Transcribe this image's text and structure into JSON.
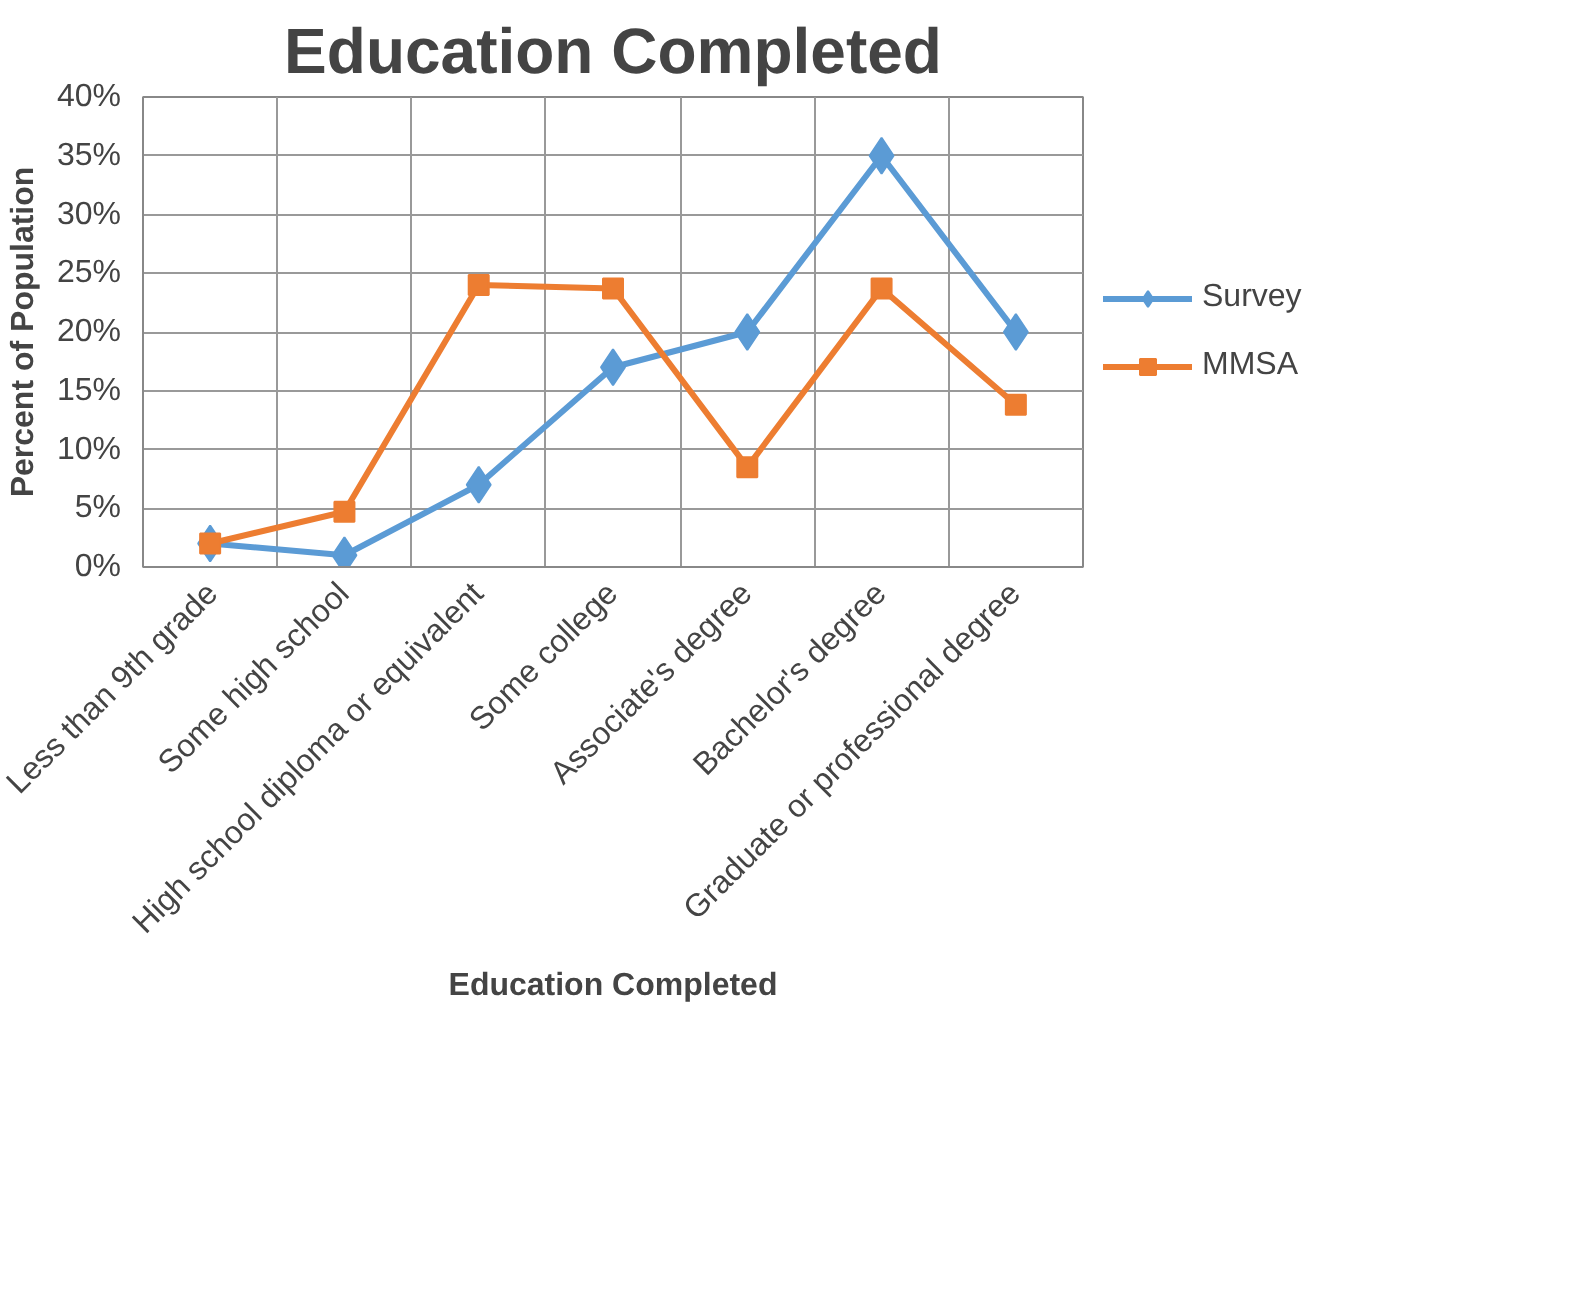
{
  "chart_data": {
    "type": "line",
    "title": "Education Completed",
    "xlabel": "Education Completed",
    "ylabel": "Percent of Population",
    "categories": [
      "Less than 9th grade",
      "Some high school",
      "High school diploma or equivalent",
      "Some college",
      "Associate's degree",
      "Bachelor's degree",
      "Graduate or professional degree"
    ],
    "series": [
      {
        "name": "Survey",
        "color": "#5b9bd5",
        "marker": "diamond",
        "values": [
          2,
          1,
          7,
          17,
          20,
          35,
          20
        ]
      },
      {
        "name": "MMSA",
        "color": "#ed7d31",
        "marker": "square",
        "values": [
          2,
          4.7,
          24,
          23.7,
          8.5,
          23.7,
          13.8
        ]
      }
    ],
    "ylim": [
      0,
      40
    ],
    "yticks": [
      {
        "value": 0,
        "label": "0%"
      },
      {
        "value": 5,
        "label": "5%"
      },
      {
        "value": 10,
        "label": "10%"
      },
      {
        "value": 15,
        "label": "15%"
      },
      {
        "value": 20,
        "label": "20%"
      },
      {
        "value": 25,
        "label": "25%"
      },
      {
        "value": 30,
        "label": "30%"
      },
      {
        "value": 35,
        "label": "35%"
      },
      {
        "value": 40,
        "label": "40%"
      }
    ],
    "grid": true,
    "legend": "right",
    "line_style": "solid"
  }
}
